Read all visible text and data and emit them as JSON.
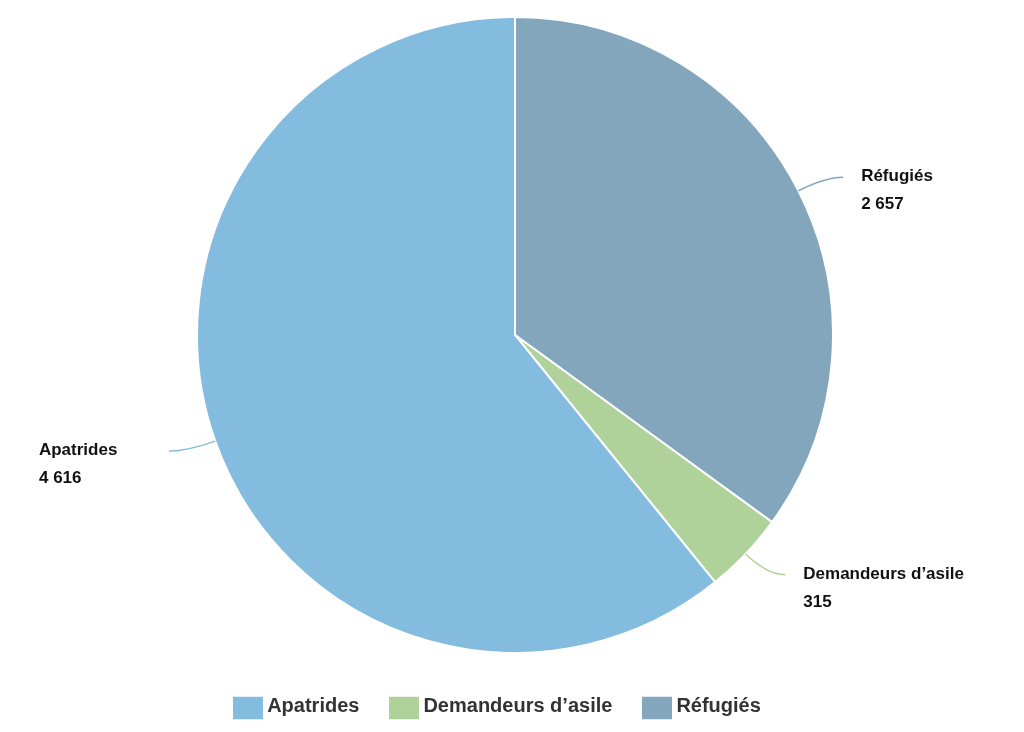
{
  "chart_data": {
    "type": "pie",
    "categories": [
      "Réfugiés",
      "Demandeurs d’asile",
      "Apatrides"
    ],
    "values": [
      2657,
      315,
      4616
    ],
    "colors": [
      "#84a6bd",
      "#afd29a",
      "#83bcdf"
    ],
    "data_labels": true,
    "legend": "bottom"
  }
}
